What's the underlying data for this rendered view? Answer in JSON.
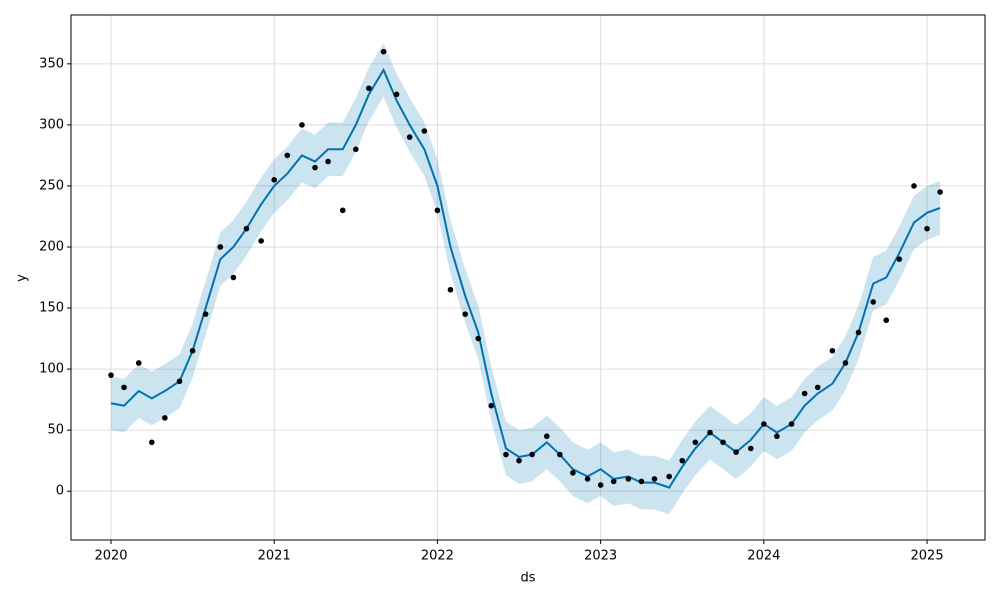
{
  "chart_data": {
    "type": "forecast",
    "xlabel": "ds",
    "ylabel": "y",
    "x": [
      2020.0,
      2020.08,
      2020.17,
      2020.25,
      2020.33,
      2020.42,
      2020.5,
      2020.58,
      2020.67,
      2020.75,
      2020.83,
      2020.92,
      2021.0,
      2021.08,
      2021.17,
      2021.25,
      2021.33,
      2021.42,
      2021.5,
      2021.58,
      2021.67,
      2021.75,
      2021.83,
      2021.92,
      2022.0,
      2022.08,
      2022.17,
      2022.25,
      2022.33,
      2022.42,
      2022.5,
      2022.58,
      2022.67,
      2022.75,
      2022.83,
      2022.92,
      2023.0,
      2023.08,
      2023.17,
      2023.25,
      2023.33,
      2023.42,
      2023.5,
      2023.58,
      2023.67,
      2023.75,
      2023.83,
      2023.92,
      2024.0,
      2024.08,
      2024.17,
      2024.25,
      2024.33,
      2024.42,
      2024.5,
      2024.58,
      2024.67,
      2024.75,
      2024.83,
      2024.92,
      2025.0,
      2025.08
    ],
    "y": [
      95,
      85,
      105,
      40,
      60,
      90,
      115,
      145,
      200,
      175,
      215,
      205,
      255,
      275,
      300,
      265,
      270,
      230,
      280,
      330,
      360,
      325,
      290,
      295,
      230,
      165,
      145,
      125,
      70,
      30,
      25,
      30,
      45,
      30,
      15,
      10,
      5,
      8,
      10,
      8,
      10,
      12,
      25,
      40,
      48,
      40,
      32,
      35,
      55,
      45,
      55,
      80,
      85,
      115,
      105,
      130,
      155,
      140,
      190,
      250,
      215,
      245
    ],
    "yhat": [
      72,
      70,
      82,
      76,
      82,
      90,
      115,
      150,
      190,
      200,
      215,
      235,
      250,
      260,
      275,
      270,
      280,
      280,
      300,
      325,
      345,
      320,
      300,
      280,
      250,
      200,
      160,
      130,
      80,
      35,
      28,
      30,
      40,
      30,
      18,
      12,
      18,
      10,
      12,
      7,
      7,
      3,
      20,
      35,
      48,
      40,
      32,
      42,
      55,
      48,
      55,
      70,
      80,
      88,
      105,
      130,
      170,
      175,
      195,
      220,
      228,
      232
    ],
    "yhat_lower": [
      50,
      48,
      60,
      54,
      60,
      68,
      93,
      128,
      168,
      178,
      193,
      213,
      228,
      238,
      253,
      248,
      258,
      258,
      278,
      303,
      323,
      298,
      278,
      258,
      228,
      178,
      138,
      108,
      58,
      13,
      6,
      8,
      18,
      8,
      -4,
      -10,
      -4,
      -12,
      -10,
      -15,
      -15,
      -19,
      -2,
      13,
      26,
      18,
      10,
      20,
      33,
      26,
      33,
      48,
      58,
      66,
      83,
      108,
      148,
      153,
      173,
      198,
      206,
      210
    ],
    "yhat_upper": [
      94,
      92,
      104,
      98,
      104,
      112,
      137,
      172,
      212,
      222,
      237,
      257,
      272,
      282,
      297,
      292,
      302,
      302,
      322,
      347,
      367,
      342,
      322,
      302,
      272,
      222,
      182,
      152,
      102,
      57,
      50,
      52,
      62,
      52,
      40,
      34,
      40,
      32,
      34,
      29,
      29,
      25,
      42,
      57,
      70,
      62,
      54,
      64,
      77,
      70,
      77,
      92,
      102,
      110,
      127,
      152,
      192,
      197,
      217,
      242,
      250,
      254
    ],
    "point_color": "#000000",
    "line_color": "#0072B2",
    "band_color": "#0072B2",
    "xlim": [
      2019.755,
      2025.355
    ],
    "ylim": [
      -40,
      390
    ],
    "xticks": [
      2020,
      2021,
      2022,
      2023,
      2024,
      2025
    ],
    "yticks": [
      0,
      50,
      100,
      150,
      200,
      250,
      300,
      350
    ],
    "grid": true
  }
}
